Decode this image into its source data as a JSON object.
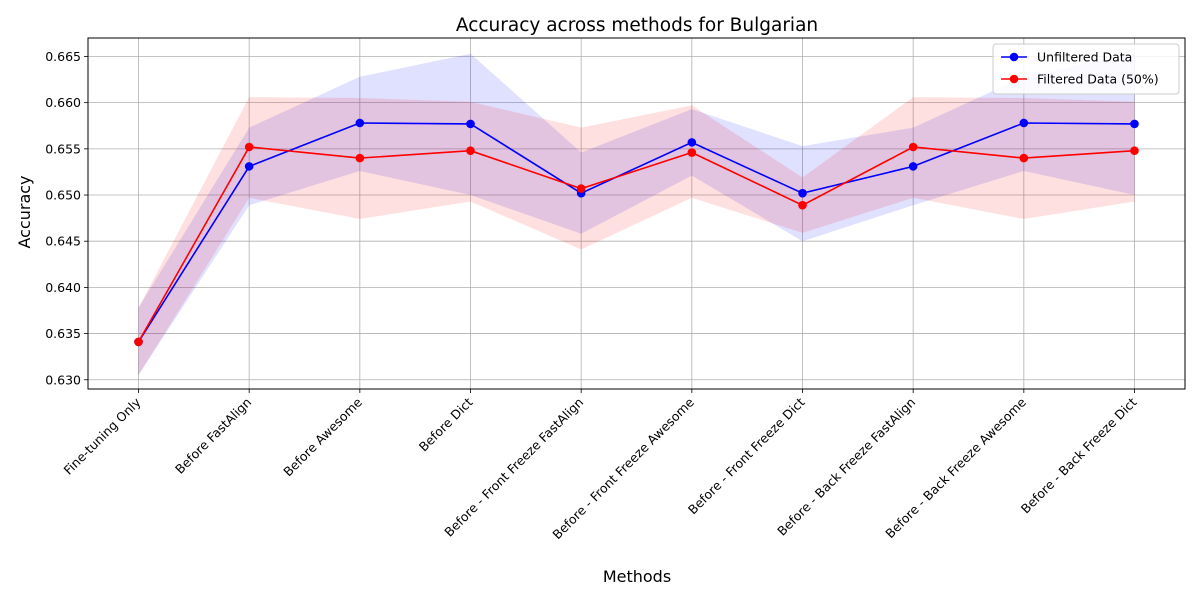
{
  "chart_data": {
    "type": "line",
    "title": "Accuracy across methods for Bulgarian",
    "xlabel": "Methods",
    "ylabel": "Accuracy",
    "ylim": [
      0.629,
      0.667
    ],
    "yticks": [
      "0.630",
      "0.635",
      "0.640",
      "0.645",
      "0.650",
      "0.655",
      "0.660",
      "0.665"
    ],
    "grid": true,
    "legend_position": "top-right",
    "categories": [
      "Fine-tuning Only",
      "Before FastAlign",
      "Before Awesome",
      "Before Dict",
      "Before - Front Freeze FastAlign",
      "Before - Front Freeze Awesome",
      "Before - Front Freeze Dict",
      "Before - Back Freeze FastAlign",
      "Before - Back Freeze Awesome",
      "Before - Back Freeze Dict"
    ],
    "series": [
      {
        "name": "Unfiltered Data",
        "color": "#0000ff",
        "values": [
          0.6341,
          0.6531,
          0.6578,
          0.6577,
          0.6502,
          0.6557,
          0.6502,
          0.6531,
          0.6578,
          0.6577
        ],
        "lower": [
          0.6305,
          0.6489,
          0.6526,
          0.65,
          0.6458,
          0.6521,
          0.645,
          0.6489,
          0.6526,
          0.65
        ],
        "upper": [
          0.6378,
          0.6573,
          0.6628,
          0.6653,
          0.6546,
          0.6593,
          0.6553,
          0.6573,
          0.6628,
          0.6653
        ]
      },
      {
        "name": "Filtered Data (50%)",
        "color": "#ff0000",
        "values": [
          0.6341,
          0.6552,
          0.654,
          0.6548,
          0.6507,
          0.6546,
          0.6489,
          0.6552,
          0.654,
          0.6548
        ],
        "lower": [
          0.6305,
          0.6497,
          0.6474,
          0.6493,
          0.6441,
          0.6497,
          0.6459,
          0.6497,
          0.6474,
          0.6493
        ],
        "upper": [
          0.6378,
          0.6606,
          0.6605,
          0.6601,
          0.6573,
          0.6597,
          0.6519,
          0.6606,
          0.6605,
          0.6601
        ]
      }
    ]
  }
}
